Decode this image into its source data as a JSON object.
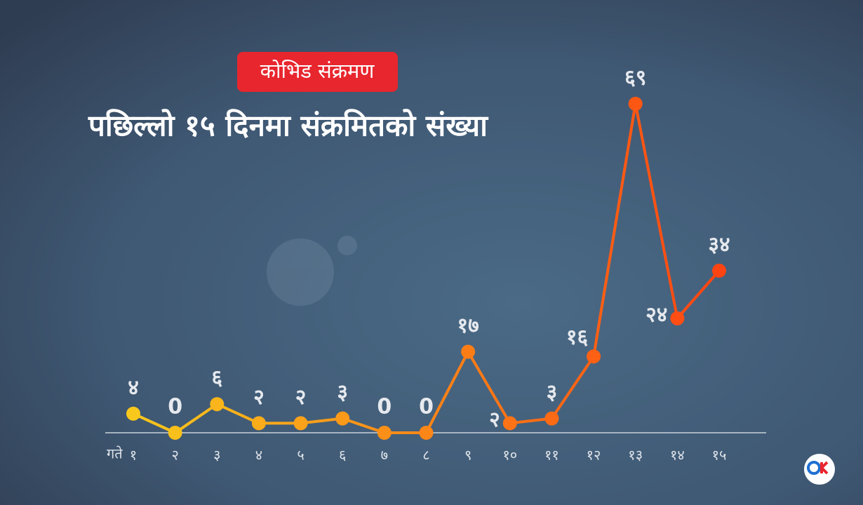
{
  "chart_data": {
    "type": "line",
    "badge": "कोभिड संक्रमण",
    "title": "पछिल्लो १५ दिनमा संक्रमितको संख्या",
    "x_label": "गते",
    "categories": [
      "१",
      "२",
      "३",
      "४",
      "५",
      "६",
      "७",
      "८",
      "९",
      "१०",
      "११",
      "१२",
      "१३",
      "१४",
      "१५"
    ],
    "values": [
      4,
      0,
      6,
      2,
      2,
      3,
      0,
      0,
      17,
      2,
      3,
      16,
      69,
      24,
      34
    ],
    "value_labels": [
      "४",
      "0",
      "६",
      "२",
      "२",
      "३",
      "0",
      "0",
      "१७",
      "२",
      "३",
      "१६",
      "६९",
      "२४",
      "३४"
    ],
    "color_start": "#f8c81c",
    "color_end": "#ff4412"
  }
}
